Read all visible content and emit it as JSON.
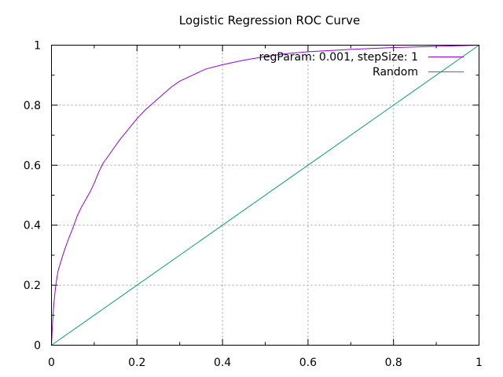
{
  "chart_data": {
    "type": "line",
    "title": "Logistic Regression ROC Curve",
    "xlabel": "",
    "ylabel": "",
    "xlim": [
      0,
      1
    ],
    "ylim": [
      0,
      1
    ],
    "xticks": [
      0,
      0.2,
      0.4,
      0.6,
      0.8,
      1
    ],
    "yticks": [
      0,
      0.2,
      0.4,
      0.6,
      0.8,
      1
    ],
    "x_tick_labels": [
      "0",
      "0.2",
      "0.4",
      "0.6",
      "0.8",
      "1"
    ],
    "y_tick_labels": [
      "0",
      "0.2",
      "0.4",
      "0.6",
      "0.8",
      "1"
    ],
    "minor_ticks_between_major": 2,
    "grid": true,
    "legend_position": "top-right",
    "series": [
      {
        "name": "regParam: 0.001, stepSize: 1",
        "color": "#9400d3",
        "points": [
          [
            0.0,
            0.0
          ],
          [
            0.002,
            0.06
          ],
          [
            0.005,
            0.13
          ],
          [
            0.01,
            0.2
          ],
          [
            0.015,
            0.245
          ],
          [
            0.02,
            0.27
          ],
          [
            0.03,
            0.315
          ],
          [
            0.04,
            0.355
          ],
          [
            0.05,
            0.39
          ],
          [
            0.06,
            0.43
          ],
          [
            0.07,
            0.46
          ],
          [
            0.08,
            0.485
          ],
          [
            0.09,
            0.51
          ],
          [
            0.1,
            0.54
          ],
          [
            0.11,
            0.575
          ],
          [
            0.12,
            0.605
          ],
          [
            0.14,
            0.645
          ],
          [
            0.16,
            0.685
          ],
          [
            0.18,
            0.72
          ],
          [
            0.2,
            0.755
          ],
          [
            0.22,
            0.785
          ],
          [
            0.24,
            0.81
          ],
          [
            0.26,
            0.835
          ],
          [
            0.28,
            0.86
          ],
          [
            0.3,
            0.88
          ],
          [
            0.33,
            0.9
          ],
          [
            0.36,
            0.92
          ],
          [
            0.4,
            0.935
          ],
          [
            0.45,
            0.95
          ],
          [
            0.5,
            0.962
          ],
          [
            0.55,
            0.972
          ],
          [
            0.6,
            0.978
          ],
          [
            0.7,
            0.986
          ],
          [
            0.8,
            0.992
          ],
          [
            0.9,
            0.996
          ],
          [
            0.95,
            0.998
          ],
          [
            1.0,
            1.0
          ]
        ]
      },
      {
        "name": "Random",
        "color": "#009e73",
        "points": [
          [
            0,
            0
          ],
          [
            1,
            1
          ]
        ]
      }
    ]
  }
}
